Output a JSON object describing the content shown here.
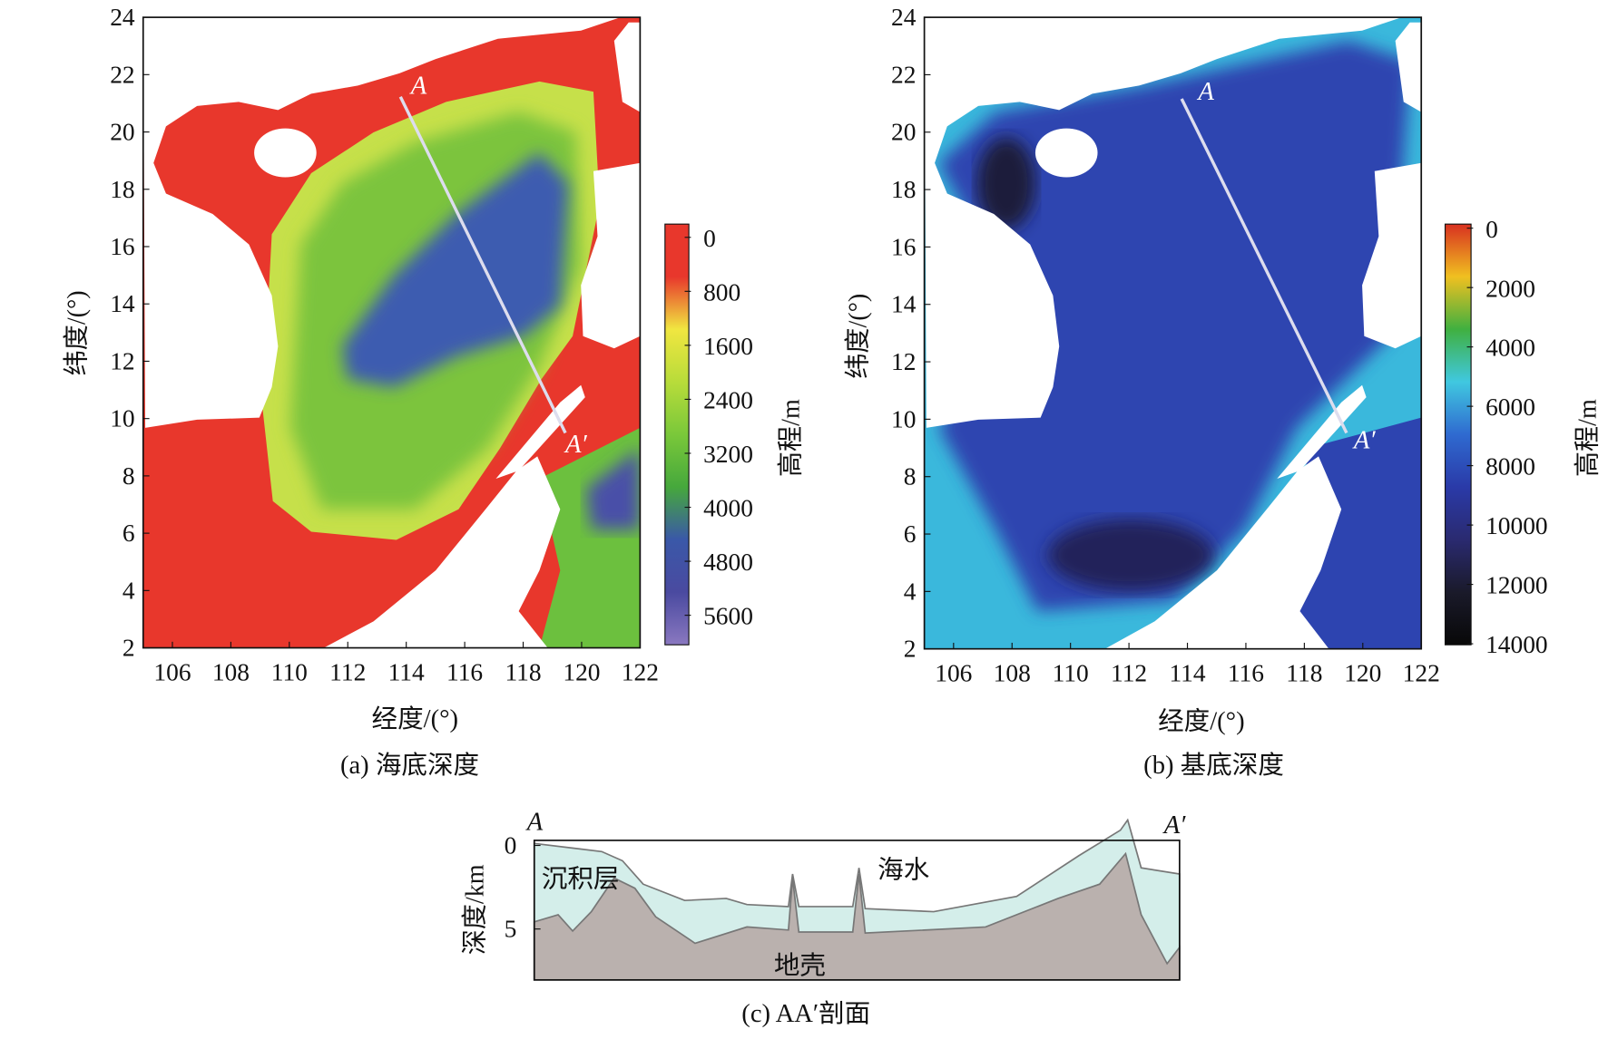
{
  "panel_a": {
    "caption": "(a) 海底深度",
    "xlabel": "经度/(°)",
    "ylabel": "纬度/(°)",
    "x_ticks": [
      "106",
      "108",
      "110",
      "112",
      "114",
      "116",
      "118",
      "120",
      "122"
    ],
    "y_ticks": [
      "2",
      "4",
      "6",
      "8",
      "10",
      "12",
      "14",
      "16",
      "18",
      "20",
      "22",
      "24"
    ],
    "colorbar_label": "高程/m",
    "colorbar_ticks": [
      "0",
      "800",
      "1600",
      "2400",
      "3200",
      "4000",
      "4800",
      "5600"
    ],
    "colormap": [
      "#e8372c",
      "#e8372c",
      "#f0e640",
      "#b8dc3a",
      "#7ac83a",
      "#46a83c",
      "#3a58a8",
      "#4a4aa0",
      "#8a78c0"
    ],
    "point_a": "A",
    "point_a_prime": "A′"
  },
  "panel_b": {
    "caption": "(b) 基底深度",
    "xlabel": "经度/(°)",
    "ylabel": "纬度/(°)",
    "x_ticks": [
      "106",
      "108",
      "110",
      "112",
      "114",
      "116",
      "118",
      "120",
      "122"
    ],
    "y_ticks": [
      "2",
      "4",
      "6",
      "8",
      "10",
      "12",
      "14",
      "16",
      "18",
      "20",
      "22",
      "24"
    ],
    "colorbar_label": "高程/m",
    "colorbar_ticks": [
      "0",
      "2000",
      "4000",
      "6000",
      "8000",
      "10000",
      "12000",
      "14000"
    ],
    "colormap": [
      "#d83020",
      "#f0c020",
      "#40b040",
      "#40c8e0",
      "#2f6ad0",
      "#2a3aa8",
      "#2a2a70",
      "#1a1a2a",
      "#080808"
    ],
    "point_a": "A",
    "point_a_prime": "A′"
  },
  "panel_c": {
    "caption": "(c) AA′剖面",
    "ylabel": "深度/km",
    "y_ticks": [
      "0",
      "5"
    ],
    "point_a": "A",
    "point_a_prime": "A′",
    "label_sediment": "沉积层",
    "label_seawater": "海水",
    "label_crust": "地壳",
    "colors": {
      "sediment": "#d4eeea",
      "crust": "#bab1ae"
    }
  }
}
